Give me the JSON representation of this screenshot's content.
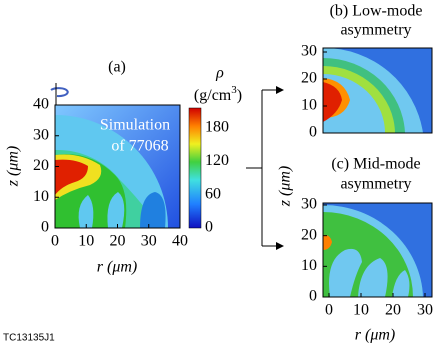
{
  "panel_a": {
    "label": "(a)",
    "annotation": [
      "Simulation",
      "of 77068"
    ],
    "x_label": "r (μm)",
    "y_label": "z (μm)",
    "x_ticks": [
      "0",
      "10",
      "20",
      "30",
      "40"
    ],
    "y_ticks": [
      "0",
      "10",
      "20",
      "30",
      "40"
    ]
  },
  "colorbar": {
    "symbol": "ρ",
    "unit": "(g/cm",
    "unit_power": "3",
    "unit_close": ")",
    "ticks": [
      "0",
      "60",
      "120",
      "180"
    ]
  },
  "panel_b": {
    "title": [
      "(b) Low-mode",
      "asymmetry"
    ],
    "y_ticks": [
      "0",
      "10",
      "20",
      "30"
    ]
  },
  "panel_c": {
    "title": [
      "(c) Mid-mode",
      "asymmetry"
    ],
    "y_ticks": [
      "0",
      "10",
      "20",
      "30"
    ],
    "x_ticks": [
      "0",
      "10",
      "20",
      "30"
    ],
    "x_label": "r (μm)"
  },
  "shared_y_label": "z (μm)",
  "footer": "TC13135J1"
}
